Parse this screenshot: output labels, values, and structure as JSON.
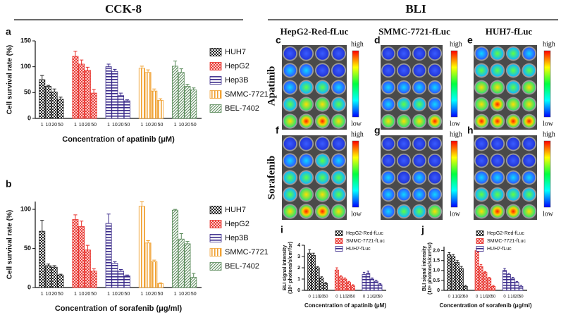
{
  "headers": [
    "CCK-8",
    "BLI"
  ],
  "columns": [
    "HepG2-Red-fLuc",
    "SMMC-7721-fLuc",
    "HUH7-fLuc"
  ],
  "rows": [
    "Apatinib",
    "Sorafenib"
  ],
  "images": [
    {
      "panel": "c",
      "scale": [
        "high",
        "low"
      ]
    },
    {
      "panel": "d",
      "scale": [
        "high",
        "low"
      ]
    },
    {
      "panel": "e",
      "scale": [
        "high",
        "low"
      ]
    },
    {
      "panel": "f",
      "scale": [
        "high",
        "low"
      ]
    },
    {
      "panel": "g",
      "scale": [
        "high",
        "low"
      ]
    },
    {
      "panel": "h",
      "scale": [
        "high",
        "low"
      ]
    }
  ],
  "chart_data": [
    {
      "type": "bar",
      "panel": "a",
      "ylabel": "Cell survival rate (%)",
      "xlabel": "Concentration of apatinib (μM)",
      "categories": [
        "1",
        "10",
        "20",
        "50"
      ],
      "ylim": [
        0,
        150
      ],
      "yticks": [
        0,
        50,
        100,
        150
      ],
      "series": [
        {
          "name": "HUH7",
          "color": "#222222",
          "pattern": "checker",
          "values": [
            75,
            62,
            51,
            37
          ],
          "errors": [
            8,
            2,
            6,
            4
          ]
        },
        {
          "name": "HepG2",
          "color": "#e8302a",
          "pattern": "cross",
          "values": [
            120,
            105,
            93,
            49
          ],
          "errors": [
            10,
            8,
            6,
            7
          ]
        },
        {
          "name": "Hep3B",
          "color": "#3a2a8a",
          "pattern": "horizontal",
          "values": [
            100,
            91,
            44,
            34
          ],
          "errors": [
            5,
            4,
            5,
            2
          ]
        },
        {
          "name": "SMMC-7721",
          "color": "#f0a030",
          "pattern": "vertical",
          "values": [
            97,
            89,
            53,
            35
          ],
          "errors": [
            4,
            5,
            4,
            3
          ]
        },
        {
          "name": "BEL-7402",
          "color": "#5a8a5a",
          "pattern": "diagonal",
          "values": [
            101,
            89,
            62,
            55
          ],
          "errors": [
            10,
            7,
            4,
            4
          ]
        }
      ]
    },
    {
      "type": "bar",
      "panel": "b",
      "ylabel": "Cell survival rate (%)",
      "xlabel": "Concentration of sorafenib (μg/ml)",
      "categories": [
        "1",
        "10",
        "20",
        "50"
      ],
      "ylim": [
        0,
        110
      ],
      "yticks": [
        0,
        50,
        100
      ],
      "series": [
        {
          "name": "HUH7",
          "color": "#222222",
          "pattern": "checker",
          "values": [
            72,
            28,
            26,
            16
          ],
          "errors": [
            14,
            2,
            2,
            1
          ]
        },
        {
          "name": "HepG2",
          "color": "#e8302a",
          "pattern": "cross",
          "values": [
            87,
            78,
            48,
            21
          ],
          "errors": [
            6,
            7,
            6,
            3
          ]
        },
        {
          "name": "Hep3B",
          "color": "#3a2a8a",
          "pattern": "horizontal",
          "values": [
            82,
            31,
            21,
            15
          ],
          "errors": [
            12,
            2,
            2,
            1
          ]
        },
        {
          "name": "SMMC-7721",
          "color": "#f0a030",
          "pattern": "vertical",
          "values": [
            104,
            57,
            33,
            5
          ],
          "errors": [
            6,
            3,
            2,
            1
          ]
        },
        {
          "name": "BEL-7402",
          "color": "#5a8a5a",
          "pattern": "diagonal",
          "values": [
            99,
            62,
            56,
            13
          ],
          "errors": [
            1,
            7,
            3,
            5
          ]
        }
      ]
    },
    {
      "type": "bar",
      "panel": "i",
      "ylabel": [
        "BLI signal intensity",
        "(10⁶ photons/s/cm²/sr)"
      ],
      "xlabel": "Concentration of apatinib (μM)",
      "categories": [
        "0",
        "1",
        "10",
        "20",
        "50"
      ],
      "ylim": [
        0,
        4
      ],
      "yticks": [
        0,
        1,
        2,
        3,
        4
      ],
      "series": [
        {
          "name": "HepG2-Red-fLuc",
          "color": "#222222",
          "pattern": "checker",
          "values": [
            3.3,
            3.1,
            2.0,
            1.1,
            0.6
          ],
          "errors": [
            0.3,
            0.2,
            0.1,
            0.1,
            0.1
          ]
        },
        {
          "name": "SMMC-7721-fLuc",
          "color": "#e8302a",
          "pattern": "cross",
          "values": [
            1.8,
            1.2,
            1.0,
            0.7,
            0.4
          ],
          "errors": [
            0.2,
            0.1,
            0.1,
            0.1,
            0.1
          ]
        },
        {
          "name": "HUH7-fLuc",
          "color": "#3a2a8a",
          "pattern": "horizontal",
          "values": [
            1.4,
            1.5,
            1.0,
            0.8,
            0.5
          ],
          "errors": [
            0.2,
            0.2,
            0.1,
            0.1,
            0.1
          ]
        }
      ]
    },
    {
      "type": "bar",
      "panel": "j",
      "ylabel": [
        "BLI signal intensity",
        "(10⁶ photons/s/cm²/sr)"
      ],
      "xlabel": "Concentration of sorafenib (μg/ml)",
      "categories": [
        "0",
        "1",
        "10",
        "20",
        "50"
      ],
      "ylim": [
        0,
        2.2
      ],
      "yticks": [
        0,
        0.5,
        {
          "value": 1,
          "label": "1.0"
        },
        1.5,
        {
          "value": 2,
          "label": "2.0"
        }
      ],
      "series": [
        {
          "name": "HepG2-Red-fLuc",
          "color": "#222222",
          "pattern": "checker",
          "values": [
            1.8,
            1.7,
            1.4,
            1.1,
            0.2
          ],
          "errors": [
            0.1,
            0.1,
            0.1,
            0.1,
            0.05
          ]
        },
        {
          "name": "SMMC-7721-fLuc",
          "color": "#e8302a",
          "pattern": "cross",
          "values": [
            2.0,
            1.2,
            0.9,
            0.6,
            0.2
          ],
          "errors": [
            0.1,
            0.1,
            0.05,
            0.05,
            0.05
          ]
        },
        {
          "name": "HUH7-fLuc",
          "color": "#3a2a8a",
          "pattern": "horizontal",
          "values": [
            1.0,
            0.8,
            0.6,
            0.4,
            0.2
          ],
          "errors": [
            0.1,
            0.05,
            0.05,
            0.05,
            0.05
          ]
        }
      ]
    }
  ]
}
